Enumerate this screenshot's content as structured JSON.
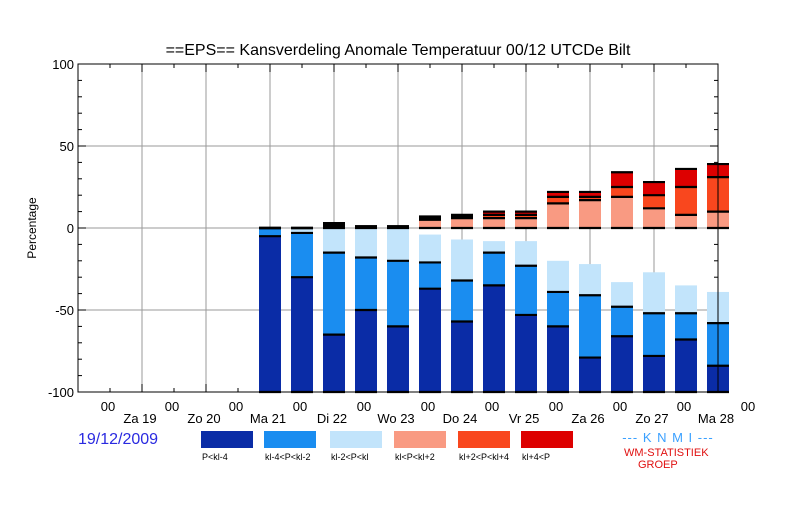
{
  "chart_data": {
    "type": "bar",
    "subtype": "stacked-probability",
    "title": "==EPS== Kansverdeling Anomale Temperatuur 00/12 UTCDe Bilt",
    "ylabel": "Percentage",
    "ylim": [
      -100,
      100
    ],
    "yticks": [
      100,
      50,
      0,
      -50,
      -100
    ],
    "xlim": [
      0,
      20
    ],
    "x_tick_label": "00",
    "day_labels": [
      "Za 19",
      "Zo 20",
      "Ma 21",
      "Di 22",
      "Wo 23",
      "Do 24",
      "Vr 25",
      "Za 26",
      "Zo 27",
      "Ma 28"
    ],
    "grid": true,
    "series": [
      {
        "name": "P<kl-4",
        "color": "#0a2ca6"
      },
      {
        "name": "kl-4<P<kl-2",
        "color": "#1a8df0"
      },
      {
        "name": "kl-2<P<kl",
        "color": "#c2e4fb"
      },
      {
        "name": "kl<P<kl+2",
        "color": "#f99a82"
      },
      {
        "name": "kl+2<P<kl+4",
        "color": "#f9471e"
      },
      {
        "name": "kl+4<P",
        "color": "#dd0000"
      }
    ],
    "bars": [
      {
        "x": 6,
        "values": [
          95,
          5,
          0,
          0,
          0,
          0
        ]
      },
      {
        "x": 7,
        "values": [
          70,
          27,
          3,
          0,
          0,
          0
        ]
      },
      {
        "x": 8,
        "values": [
          35,
          50,
          15,
          1,
          1,
          1
        ]
      },
      {
        "x": 9,
        "values": [
          50,
          32,
          18,
          1,
          0,
          0
        ]
      },
      {
        "x": 10,
        "values": [
          40,
          40,
          20,
          1,
          0,
          0
        ]
      },
      {
        "x": 11,
        "values": [
          63,
          16,
          17,
          5,
          1,
          1
        ]
      },
      {
        "x": 12,
        "values": [
          43,
          25,
          25,
          6,
          1,
          1
        ]
      },
      {
        "x": 13,
        "values": [
          65,
          20,
          7,
          6,
          2,
          2
        ]
      },
      {
        "x": 14,
        "values": [
          47,
          30,
          15,
          6,
          2,
          2
        ]
      },
      {
        "x": 15,
        "values": [
          40,
          21,
          19,
          15,
          4,
          3
        ]
      },
      {
        "x": 16,
        "values": [
          21,
          38,
          19,
          17,
          2,
          3
        ]
      },
      {
        "x": 17,
        "values": [
          34,
          18,
          15,
          19,
          6,
          9
        ]
      },
      {
        "x": 18,
        "values": [
          22,
          26,
          25,
          12,
          8,
          8
        ]
      },
      {
        "x": 19,
        "values": [
          32,
          16,
          17,
          8,
          17,
          11
        ]
      },
      {
        "x": 20,
        "values": [
          16,
          26,
          19,
          10,
          21,
          8
        ]
      }
    ]
  },
  "footer": {
    "date": "19/12/2009",
    "org": "--- K N M I ---",
    "group_line1": "WM-STATISTIEK",
    "group_line2": "GROEP"
  }
}
